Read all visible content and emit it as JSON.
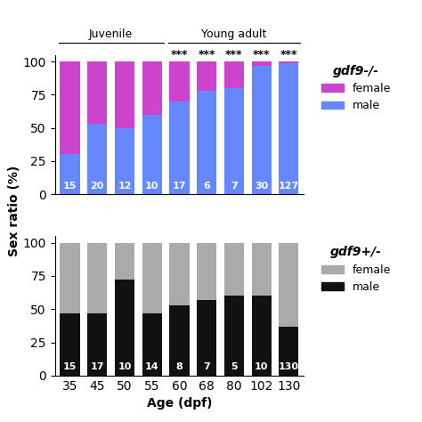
{
  "chart_data": [
    {
      "type": "bar",
      "stacked": true,
      "title": "gdf9-/-",
      "y_label": "Sex ratio (%)",
      "categories": [
        "35",
        "45",
        "50",
        "55",
        "60",
        "68",
        "80",
        "102",
        "130"
      ],
      "series": [
        {
          "name": "male",
          "color": "#6688ff",
          "values": [
            30,
            53,
            50,
            60,
            70,
            78,
            80,
            97,
            99
          ]
        },
        {
          "name": "female",
          "color": "#cc44cc",
          "values": [
            70,
            47,
            50,
            40,
            30,
            22,
            20,
            3,
            1
          ]
        }
      ],
      "n": [
        15,
        20,
        12,
        10,
        17,
        6,
        7,
        30,
        127
      ],
      "annotations": [
        {
          "category": "60",
          "text": "***"
        },
        {
          "category": "68",
          "text": "***"
        },
        {
          "category": "80",
          "text": "***"
        },
        {
          "category": "102",
          "text": "***"
        },
        {
          "category": "130",
          "text": "***"
        }
      ],
      "groups": [
        {
          "label": "Juvenile",
          "categories": [
            "35",
            "45",
            "50",
            "55"
          ]
        },
        {
          "label": "Young adult",
          "categories": [
            "60",
            "68",
            "80",
            "102",
            "130"
          ]
        }
      ],
      "ylim": [
        0,
        105
      ],
      "yticks": [
        0,
        25,
        50,
        75,
        100
      ],
      "tick_labels": "y",
      "legend": "upper left"
    },
    {
      "type": "bar",
      "stacked": true,
      "title": "gdf9+/-",
      "x_label": "Age (dpf)",
      "categories": [
        "35",
        "45",
        "50",
        "55",
        "60",
        "68",
        "80",
        "102",
        "130"
      ],
      "series": [
        {
          "name": "male",
          "color": "#111111",
          "values": [
            47,
            47,
            72,
            47,
            53,
            57,
            60,
            60,
            37
          ]
        },
        {
          "name": "female",
          "color": "#aaaaaa",
          "values": [
            53,
            53,
            28,
            53,
            47,
            43,
            40,
            40,
            63
          ]
        }
      ],
      "n": [
        15,
        17,
        10,
        14,
        8,
        7,
        5,
        10,
        130
      ],
      "ylim": [
        0,
        105
      ],
      "yticks": [
        0,
        25,
        50,
        75,
        100
      ],
      "legend": "upper left"
    }
  ]
}
